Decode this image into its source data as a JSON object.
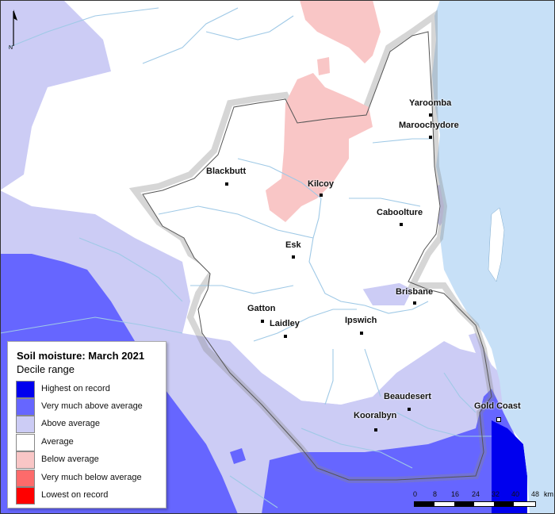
{
  "legend": {
    "title": "Soil moisture: March 2021",
    "subtitle": "Decile range",
    "items": [
      {
        "label": "Highest on record",
        "color": "#0000ee"
      },
      {
        "label": "Very much above average",
        "color": "#6666ff"
      },
      {
        "label": "Above average",
        "color": "#ccccf5"
      },
      {
        "label": "Average",
        "color": "#ffffff"
      },
      {
        "label": "Below average",
        "color": "#f9c6c6"
      },
      {
        "label": "Very much below average",
        "color": "#fd6b6b"
      },
      {
        "label": "Lowest on record",
        "color": "#ff0000"
      }
    ]
  },
  "towns": [
    {
      "name": "Yaroomba"
    },
    {
      "name": "Maroochydore"
    },
    {
      "name": "Blackbutt"
    },
    {
      "name": "Kilcoy"
    },
    {
      "name": "Caboolture"
    },
    {
      "name": "Esk"
    },
    {
      "name": "Brisbane"
    },
    {
      "name": "Gatton"
    },
    {
      "name": "Laidley"
    },
    {
      "name": "Ipswich"
    },
    {
      "name": "Beaudesert"
    },
    {
      "name": "Gold Coast"
    },
    {
      "name": "Kooralbyn"
    }
  ],
  "scale_bar": {
    "ticks": [
      "0",
      "8",
      "16",
      "24",
      "32",
      "40",
      "48"
    ],
    "unit": "km"
  },
  "north_arrow": {
    "label": "N"
  },
  "colors": {
    "sea": "#c7e0f7",
    "river": "#9fc9e6",
    "outside": "#f2f2f2",
    "boundary_shadow": "#8a8a8a"
  }
}
